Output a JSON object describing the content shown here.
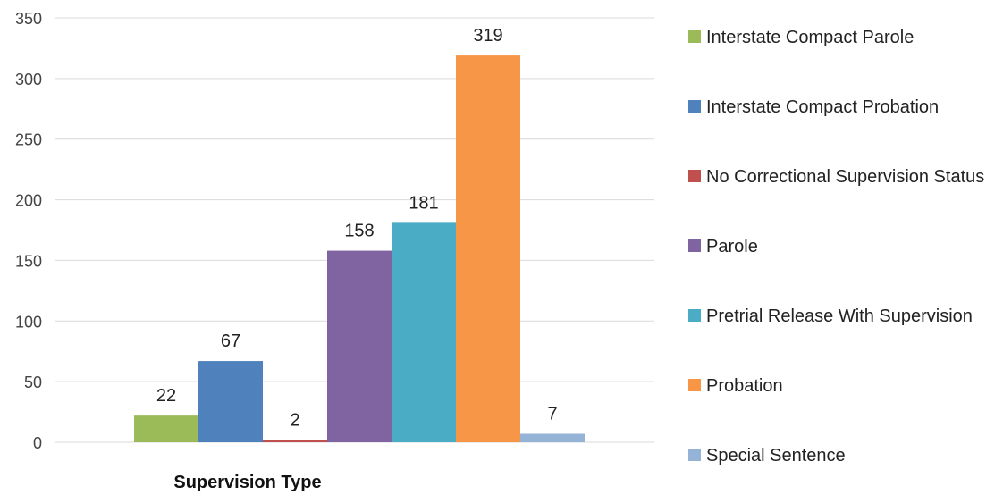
{
  "chart_data": {
    "type": "bar",
    "xlabel": "Supervision Type",
    "ylabel": "",
    "ylim": [
      0,
      350
    ],
    "yticks": [
      0,
      50,
      100,
      150,
      200,
      250,
      300,
      350
    ],
    "grid": true,
    "legend_position": "right",
    "categories": [
      "Supervision Type"
    ],
    "series": [
      {
        "name": "Interstate Compact Parole",
        "values": [
          22
        ],
        "color": "#9bbb59"
      },
      {
        "name": "Interstate Compact Probation",
        "values": [
          67
        ],
        "color": "#4f81bd"
      },
      {
        "name": "No Correctional Supervision Status",
        "values": [
          2
        ],
        "color": "#c0504d"
      },
      {
        "name": "Parole",
        "values": [
          158
        ],
        "color": "#8064a2"
      },
      {
        "name": "Pretrial Release With Supervision",
        "values": [
          181
        ],
        "color": "#4bacc6"
      },
      {
        "name": "Probation",
        "values": [
          319
        ],
        "color": "#f79646"
      },
      {
        "name": "Special Sentence",
        "values": [
          7
        ],
        "color": "#95b3d7"
      }
    ]
  }
}
